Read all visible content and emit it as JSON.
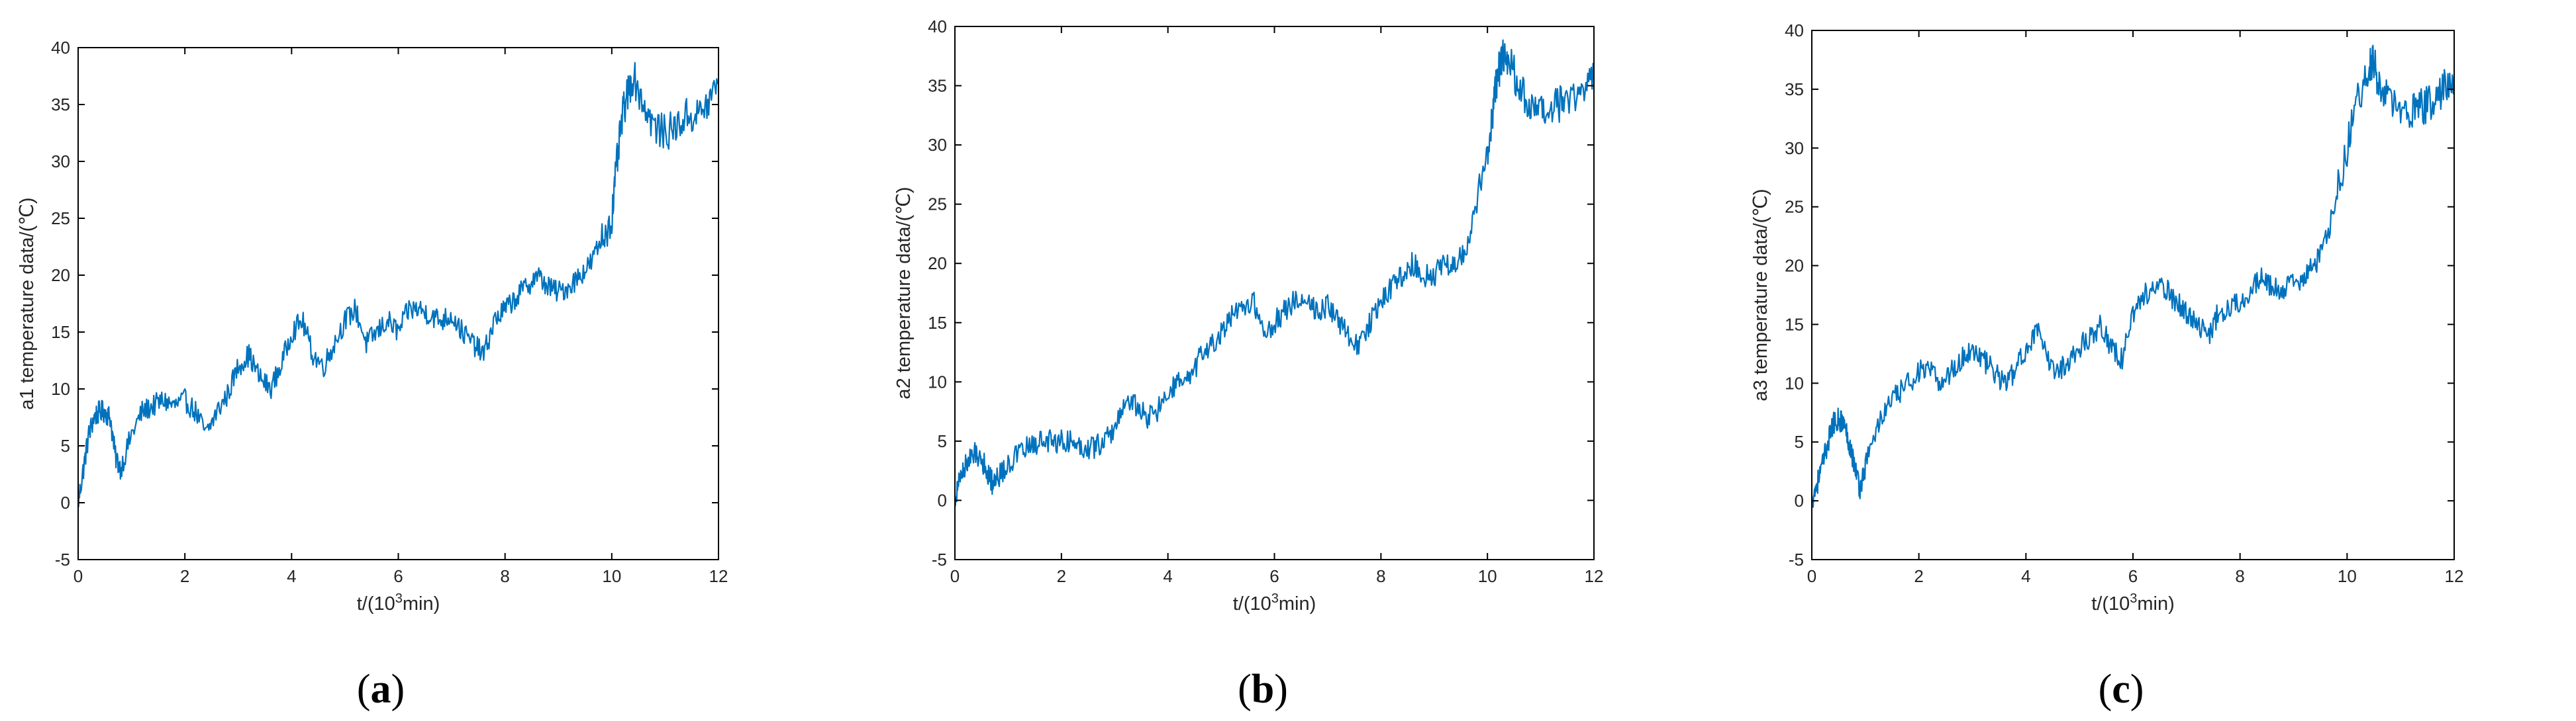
{
  "series_color": "#0072BD",
  "chart_data": [
    {
      "type": "line",
      "panel_label": "a",
      "xlabel": "t/(10",
      "xlabel_sup": "3",
      "xlabel_suffix": "min)",
      "ylabel": "a1 temperature data/(℃)",
      "xlim": [
        0,
        12
      ],
      "ylim": [
        -5,
        40
      ],
      "xticks": [
        0,
        2,
        4,
        6,
        8,
        10,
        12
      ],
      "yticks": [
        -5,
        0,
        5,
        10,
        15,
        20,
        25,
        30,
        35,
        40
      ],
      "series": [
        {
          "x": [
            0,
            0.1,
            0.2,
            0.3,
            0.4,
            0.5,
            0.6,
            0.7,
            0.8,
            1.0,
            1.2,
            1.4,
            1.6,
            1.8,
            2.0,
            2.2,
            2.4,
            2.6,
            2.8,
            3.0,
            3.2,
            3.4,
            3.6,
            3.8,
            4.0,
            4.2,
            4.4,
            4.6,
            4.8,
            5.0,
            5.2,
            5.4,
            5.6,
            5.8,
            6.0,
            6.2,
            6.4,
            6.6,
            6.8,
            7.0,
            7.2,
            7.4,
            7.6,
            7.8,
            8.0,
            8.2,
            8.4,
            8.6,
            8.8,
            9.0,
            9.2,
            9.4,
            9.6,
            9.8,
            10.0,
            10.1,
            10.2,
            10.3,
            10.4,
            10.6,
            10.8,
            11.0,
            11.2,
            11.4,
            11.6,
            11.8,
            12.0
          ],
          "y": [
            0,
            3,
            6,
            7.5,
            8,
            8,
            7.5,
            4,
            3,
            6,
            8,
            8.5,
            9,
            8.5,
            9,
            8,
            6,
            8,
            9.5,
            12,
            13,
            11,
            10,
            12,
            15,
            16,
            13,
            12,
            14,
            16,
            17,
            14,
            15,
            16,
            15,
            17,
            17,
            16.5,
            16,
            16.5,
            15,
            14,
            13,
            16,
            17,
            18,
            19,
            20,
            19,
            18.5,
            19,
            20,
            21,
            23,
            25,
            30,
            34,
            36,
            37.5,
            35,
            33,
            32.5,
            33,
            34,
            34,
            35,
            37
          ]
        }
      ]
    },
    {
      "type": "line",
      "panel_label": "b",
      "xlabel": "t/(10",
      "xlabel_sup": "3",
      "xlabel_suffix": "min)",
      "ylabel": "a2 temperature data/(℃)",
      "xlim": [
        0,
        12
      ],
      "ylim": [
        -5,
        40
      ],
      "xticks": [
        0,
        2,
        4,
        6,
        8,
        10,
        12
      ],
      "yticks": [
        -5,
        0,
        5,
        10,
        15,
        20,
        25,
        30,
        35,
        40
      ],
      "series": [
        {
          "x": [
            0,
            0.1,
            0.2,
            0.3,
            0.4,
            0.5,
            0.6,
            0.7,
            0.8,
            1.0,
            1.2,
            1.4,
            1.6,
            1.8,
            2.0,
            2.2,
            2.4,
            2.6,
            2.8,
            3.0,
            3.2,
            3.4,
            3.6,
            3.8,
            4.0,
            4.2,
            4.4,
            4.6,
            4.8,
            5.0,
            5.2,
            5.4,
            5.6,
            5.8,
            6.0,
            6.2,
            6.4,
            6.6,
            6.8,
            7.0,
            7.2,
            7.4,
            7.6,
            7.8,
            8.0,
            8.2,
            8.4,
            8.6,
            8.8,
            9.0,
            9.2,
            9.4,
            9.6,
            9.8,
            10.0,
            10.1,
            10.2,
            10.3,
            10.4,
            10.6,
            10.8,
            11.0,
            11.2,
            11.4,
            11.6,
            11.8,
            12.0
          ],
          "y": [
            0,
            2,
            3,
            3.5,
            4,
            3.5,
            2.5,
            1.5,
            2,
            3,
            4,
            4.5,
            5,
            5,
            5,
            5,
            4.5,
            4.5,
            5,
            6,
            8.5,
            8,
            7,
            7.5,
            9,
            10,
            10,
            12,
            13,
            14,
            15.5,
            16,
            17,
            14,
            15,
            16,
            17,
            17,
            16,
            16.5,
            15,
            14,
            13,
            15,
            17,
            18,
            19,
            20,
            19,
            19,
            20,
            20,
            21,
            25,
            29,
            33,
            36,
            37.5,
            37,
            35,
            33,
            32.5,
            33,
            33.5,
            34,
            35,
            36
          ]
        }
      ]
    },
    {
      "type": "line",
      "panel_label": "c",
      "xlabel": "t/(10",
      "xlabel_sup": "3",
      "xlabel_suffix": "min)",
      "ylabel": "a3 temperature data/(℃)",
      "xlim": [
        0,
        12
      ],
      "ylim": [
        -5,
        40
      ],
      "xticks": [
        0,
        2,
        4,
        6,
        8,
        10,
        12
      ],
      "yticks": [
        -5,
        0,
        5,
        10,
        15,
        20,
        25,
        30,
        35,
        40
      ],
      "series": [
        {
          "x": [
            0,
            0.1,
            0.2,
            0.3,
            0.4,
            0.5,
            0.6,
            0.7,
            0.8,
            0.9,
            1.0,
            1.2,
            1.4,
            1.6,
            1.8,
            2.0,
            2.2,
            2.4,
            2.6,
            2.8,
            3.0,
            3.2,
            3.4,
            3.6,
            3.8,
            4.0,
            4.2,
            4.4,
            4.6,
            4.8,
            5.0,
            5.2,
            5.4,
            5.6,
            5.8,
            6.0,
            6.2,
            6.4,
            6.6,
            6.8,
            7.0,
            7.2,
            7.4,
            7.6,
            7.8,
            8.0,
            8.2,
            8.4,
            8.6,
            8.8,
            9.0,
            9.2,
            9.4,
            9.6,
            9.8,
            10.0,
            10.2,
            10.4,
            10.5,
            10.6,
            10.8,
            11.0,
            11.2,
            11.4,
            11.6,
            11.8,
            12.0
          ],
          "y": [
            0,
            1.5,
            3,
            5,
            6.5,
            7,
            6.5,
            5,
            3,
            1,
            3,
            6,
            8,
            9,
            10,
            11,
            11,
            10,
            11,
            12,
            13,
            12,
            11,
            10,
            11,
            13,
            14.5,
            12,
            11,
            12,
            13,
            14,
            15,
            13,
            12,
            16,
            17.5,
            18,
            18,
            17,
            16,
            15,
            14,
            16,
            16.5,
            17,
            18,
            19,
            18,
            18,
            18.5,
            19,
            20,
            22,
            26,
            30,
            34,
            37,
            37.5,
            35,
            34,
            33,
            33,
            33.5,
            34,
            35,
            36
          ]
        }
      ]
    }
  ]
}
